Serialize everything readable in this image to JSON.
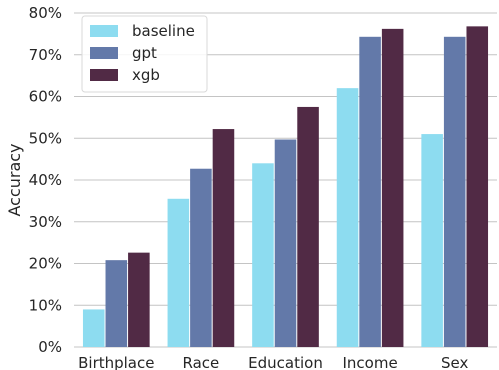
{
  "chart_data": {
    "type": "bar",
    "title": "",
    "xlabel": "",
    "ylabel": "Accuracy",
    "ylim": [
      0,
      0.8
    ],
    "yticks": [
      0,
      0.1,
      0.2,
      0.3,
      0.4,
      0.5,
      0.6,
      0.7,
      0.8
    ],
    "ytick_labels": [
      "0%",
      "10%",
      "20%",
      "30%",
      "40%",
      "50%",
      "60%",
      "70%",
      "80%"
    ],
    "grid": "horizontal",
    "legend_position": "top-left",
    "categories": [
      "Birthplace",
      "Race",
      "Education",
      "Income",
      "Sex"
    ],
    "series": [
      {
        "name": "baseline",
        "color": "#8ddcf0",
        "values": [
          0.09,
          0.355,
          0.44,
          0.62,
          0.51
        ]
      },
      {
        "name": "gpt",
        "color": "#6379a9",
        "values": [
          0.208,
          0.427,
          0.497,
          0.743,
          0.743
        ]
      },
      {
        "name": "xgb",
        "color": "#512a45",
        "values": [
          0.226,
          0.522,
          0.575,
          0.762,
          0.768
        ]
      }
    ]
  }
}
